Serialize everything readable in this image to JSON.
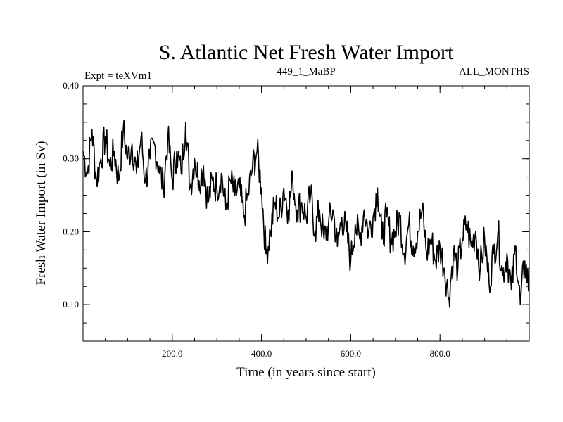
{
  "chart_data": {
    "type": "line",
    "title": "S. Atlantic Net Fresh Water Import",
    "subtitle_left": "Expt = teXVm1",
    "subtitle_center": "449_1_MaBP",
    "subtitle_right": "ALL_MONTHS",
    "xlabel": "Time (in years since start)",
    "ylabel": "Fresh Water Import (in Sv)",
    "xlim": [
      0,
      1000
    ],
    "ylim": [
      0.05,
      0.4
    ],
    "x_ticks": [
      {
        "value": 200,
        "label": "200.0"
      },
      {
        "value": 400,
        "label": "400.0"
      },
      {
        "value": 600,
        "label": "600.0"
      },
      {
        "value": 800,
        "label": "800.0"
      }
    ],
    "y_ticks": [
      {
        "value": 0.1,
        "label": "0.10"
      },
      {
        "value": 0.2,
        "label": "0.20"
      },
      {
        "value": 0.3,
        "label": "0.30"
      },
      {
        "value": 0.4,
        "label": "0.40"
      }
    ],
    "x_minor_step": 50,
    "y_minor_step": 0.025,
    "line_color": "#000000",
    "series": [
      {
        "name": "Net Fresh Water Import",
        "x": [
          0,
          10,
          20,
          30,
          40,
          50,
          60,
          70,
          80,
          90,
          100,
          110,
          120,
          130,
          140,
          150,
          160,
          170,
          180,
          190,
          200,
          210,
          220,
          230,
          240,
          250,
          260,
          270,
          280,
          290,
          300,
          310,
          320,
          330,
          340,
          350,
          360,
          370,
          380,
          390,
          400,
          410,
          420,
          430,
          440,
          450,
          460,
          470,
          480,
          490,
          500,
          510,
          520,
          530,
          540,
          550,
          560,
          570,
          580,
          590,
          600,
          610,
          620,
          630,
          640,
          650,
          660,
          670,
          680,
          690,
          700,
          710,
          720,
          730,
          740,
          750,
          760,
          770,
          780,
          790,
          800,
          810,
          820,
          830,
          840,
          850,
          860,
          870,
          880,
          890,
          900,
          910,
          920,
          930,
          940,
          950,
          960,
          970,
          980,
          990,
          1000
        ],
        "values": [
          0.31,
          0.28,
          0.34,
          0.27,
          0.3,
          0.33,
          0.29,
          0.31,
          0.27,
          0.34,
          0.3,
          0.32,
          0.28,
          0.33,
          0.27,
          0.3,
          0.32,
          0.29,
          0.26,
          0.33,
          0.27,
          0.31,
          0.28,
          0.35,
          0.26,
          0.3,
          0.27,
          0.29,
          0.24,
          0.27,
          0.26,
          0.28,
          0.23,
          0.27,
          0.25,
          0.26,
          0.22,
          0.25,
          0.29,
          0.31,
          0.26,
          0.17,
          0.2,
          0.24,
          0.22,
          0.26,
          0.23,
          0.27,
          0.23,
          0.24,
          0.22,
          0.25,
          0.2,
          0.23,
          0.19,
          0.21,
          0.23,
          0.18,
          0.22,
          0.2,
          0.16,
          0.21,
          0.19,
          0.23,
          0.2,
          0.22,
          0.26,
          0.19,
          0.22,
          0.19,
          0.2,
          0.22,
          0.17,
          0.21,
          0.18,
          0.2,
          0.23,
          0.17,
          0.19,
          0.16,
          0.18,
          0.15,
          0.11,
          0.17,
          0.15,
          0.19,
          0.21,
          0.18,
          0.2,
          0.15,
          0.19,
          0.13,
          0.17,
          0.2,
          0.14,
          0.17,
          0.12,
          0.18,
          0.1,
          0.16,
          0.12
        ]
      }
    ]
  }
}
